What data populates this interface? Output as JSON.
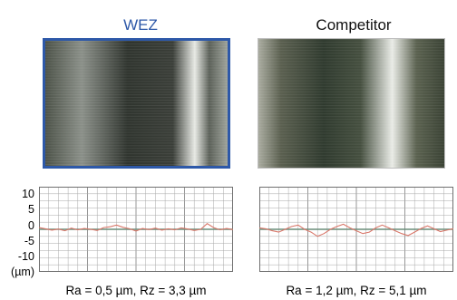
{
  "headers": {
    "left": "WEZ",
    "right": "Competitor"
  },
  "colors": {
    "wez_accent": "#2d58a8",
    "grid": "#a9a9a9",
    "trace": "#d9776a",
    "trace_dark": "#8a6a3c"
  },
  "chart_data": [
    {
      "type": "line",
      "title": "",
      "xlabel": "",
      "ylabel": "(µm)",
      "ylim": [
        -15,
        15
      ],
      "yticks": [
        "10",
        "5",
        "0",
        "-5",
        "-10"
      ],
      "grid": true,
      "caption": "Ra = 0,5 µm, Rz = 3,3 µm",
      "series": [
        {
          "values": [
            0.6,
            0.2,
            -0.3,
            0.1,
            -0.5,
            0.4,
            -0.2,
            0.3,
            0.0,
            -0.4,
            0.6,
            0.9,
            1.5,
            0.7,
            0.2,
            -0.6,
            0.3,
            -0.1,
            0.4,
            -0.3,
            0.2,
            -0.2,
            0.5,
            0.1,
            -0.4,
            0.0,
            2.0,
            0.6,
            -0.2,
            0.3,
            -0.1
          ]
        }
      ]
    },
    {
      "type": "line",
      "title": "",
      "xlabel": "",
      "ylabel": "",
      "ylim": [
        -15,
        15
      ],
      "grid": true,
      "caption": "Ra = 1,2 µm, Rz = 5,1 µm",
      "series": [
        {
          "values": [
            0.5,
            0.2,
            -0.5,
            -1.0,
            0.0,
            1.0,
            1.5,
            0.0,
            -1.0,
            -2.5,
            -1.5,
            0.0,
            1.0,
            1.8,
            0.5,
            -0.5,
            -1.5,
            -1.0,
            0.5,
            1.5,
            0.5,
            -0.5,
            -1.5,
            -2.2,
            -1.0,
            0.3,
            1.2,
            0.2,
            -0.8,
            -0.3,
            0.2
          ]
        }
      ]
    }
  ]
}
